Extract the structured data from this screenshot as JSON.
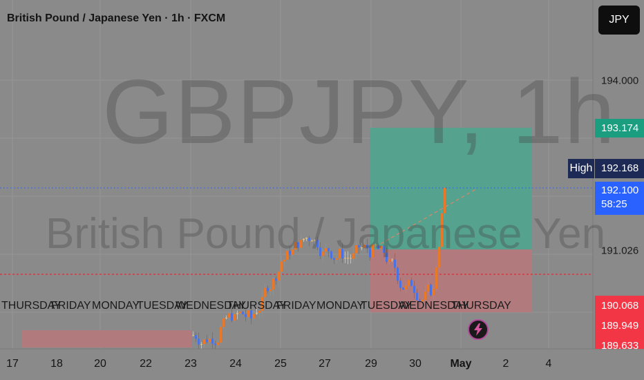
{
  "header": {
    "title": "British Pound / Japanese Yen · 1h · FXCM",
    "currency_button": "JPY"
  },
  "watermark": {
    "symbol": "GBPJPY, 1h",
    "name": "British Pound / Japanese Yen"
  },
  "price_axis": {
    "labels": [
      "194.000",
      "191.026"
    ],
    "tags": {
      "target": "193.174",
      "high_label": "High",
      "high_value": "192.168",
      "current_price": "192.100",
      "countdown": "58:25",
      "stop_1": "190.068",
      "stop_2": "189.949",
      "stop_3": "189.633"
    }
  },
  "time_axis": {
    "dates": [
      "17",
      "18",
      "20",
      "22",
      "23",
      "24",
      "25",
      "27",
      "29",
      "30",
      "May",
      "2",
      "4"
    ],
    "days": [
      "THURSDAY",
      "FRIDAY",
      "MONDAY",
      "TUESDAY",
      "WEDNESDAY",
      "THURSDAY",
      "FRIDAY",
      "MONDAY",
      "TUESDAY",
      "WEDNESDAY",
      "THURSDAY"
    ]
  },
  "colors": {
    "background": "#8a8a8a",
    "bull_candle": "#e8782a",
    "bear_candle": "#4a72e0",
    "doji_candle": "#e0c080",
    "target_zone": "#4fa48f",
    "stop_zone": "#b5787b",
    "current_price_tag": "#2962ff",
    "target_tag": "#1b9e80",
    "stop_tag": "#f23645"
  },
  "chart_data": {
    "type": "candlestick",
    "symbol": "GBPJPY",
    "interval": "1h",
    "source": "FXCM",
    "y_range": [
      189.6,
      194.8
    ],
    "current_price": 192.1,
    "session_high": 192.168,
    "position": {
      "type": "long",
      "entry": 191.15,
      "target": 193.174,
      "stop": 190.068
    },
    "approximate_closes": [
      {
        "date": "Apr 23",
        "close": 189.65
      },
      {
        "date": "Apr 24",
        "close": 189.85
      },
      {
        "date": "Apr 25",
        "close": 190.85
      },
      {
        "date": "Apr 26",
        "close": 191.3
      },
      {
        "date": "Apr 27",
        "close": 191.0
      },
      {
        "date": "Apr 29",
        "close": 191.0
      },
      {
        "date": "Apr 30",
        "close": 190.4
      },
      {
        "date": "May 1",
        "close": 190.3
      },
      {
        "date": "May 1",
        "close": 192.1
      }
    ],
    "grid": true,
    "legend": "none"
  }
}
